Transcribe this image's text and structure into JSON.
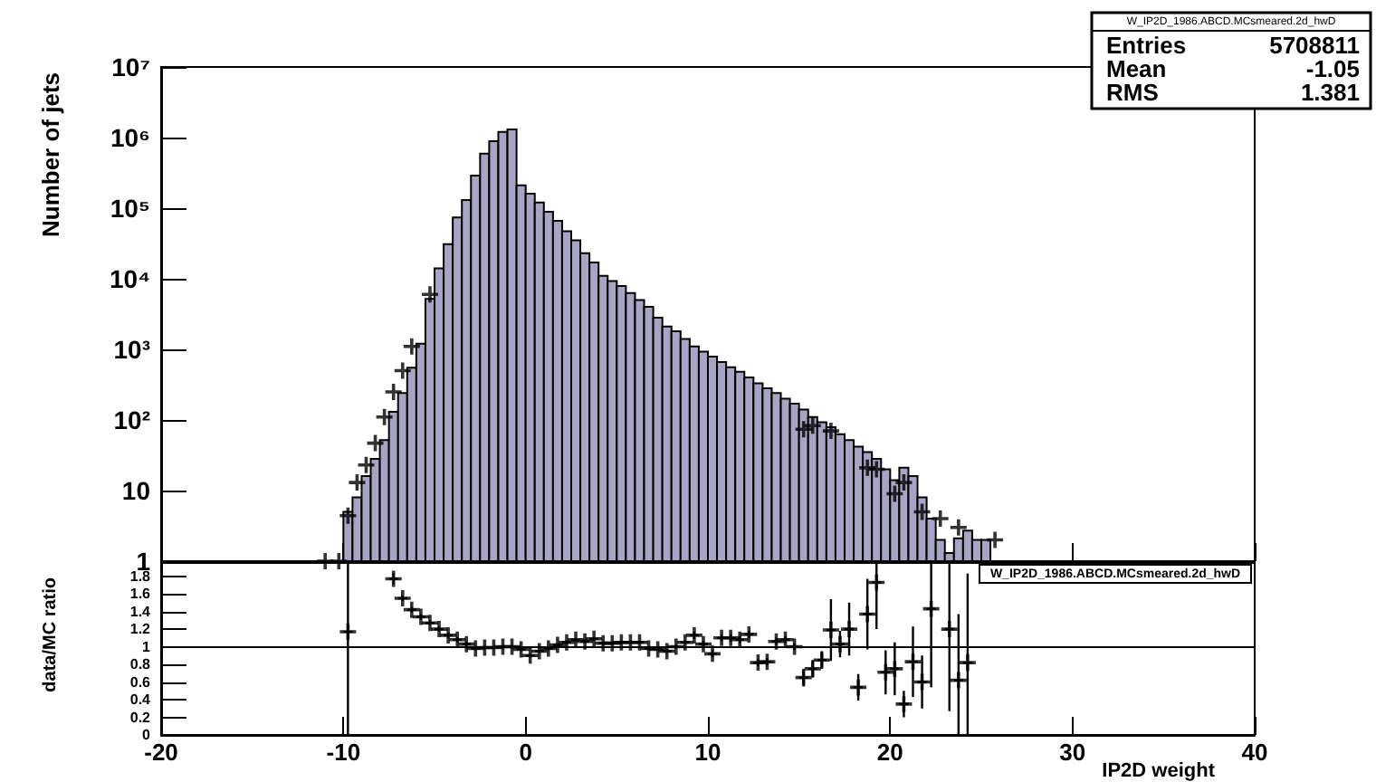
{
  "chart_data": [
    {
      "type": "histogram",
      "title": "W_IP2D_1986.ABCD.MCsmeared.2d_hwD",
      "ylabel": "Number of jets",
      "log": "y",
      "xlim": [
        -20,
        40
      ],
      "ylim": [
        1,
        10000000
      ],
      "yticks": [
        1,
        10,
        {
          "value": 100,
          "label": "10²"
        },
        {
          "value": 1000,
          "label": "10³"
        },
        {
          "value": 10000,
          "label": "10⁴"
        },
        {
          "value": 100000,
          "label": "10⁵"
        },
        {
          "value": 1000000,
          "label": "10⁶"
        },
        {
          "value": 10000000,
          "label": "10⁷"
        }
      ],
      "tick_labels": "y",
      "marker": "cross",
      "annotations": [
        "Entries 5708811",
        "Mean -1.05",
        "RMS 1.381"
      ],
      "series": [
        {
          "type": "histogram",
          "color": "#a8a5c4",
          "bins": [
            -10,
            -9.5,
            -9,
            -8.5,
            -8,
            -7.5,
            -7,
            -6.5,
            -6,
            -5.5,
            -5,
            -4.5,
            -4,
            -3.5,
            -3,
            -2.5,
            -2,
            -1.5,
            -1,
            -0.5,
            0,
            0.5,
            1,
            1.5,
            2,
            2.5,
            3,
            3.5,
            4,
            4.5,
            5,
            5.5,
            6,
            6.5,
            7,
            7.5,
            8,
            8.5,
            9,
            9.5,
            10,
            10.5,
            11,
            11.5,
            12,
            12.5,
            13,
            13.5,
            14,
            14.5,
            15,
            15.5,
            16,
            16.5,
            17,
            17.5,
            18,
            18.5,
            19,
            19.5,
            20,
            20.5,
            21,
            21.5,
            22,
            22.5,
            23,
            23.5,
            24,
            24.5,
            25,
            25.5
          ],
          "values": [
            5,
            8,
            16,
            28,
            52,
            130,
            240,
            550,
            1200,
            5200,
            14000,
            31000,
            74000,
            130000,
            290000,
            590000,
            890000,
            1200000,
            1300000,
            210000,
            160000,
            120000,
            89000,
            66000,
            47000,
            35000,
            23000,
            17000,
            11000,
            9300,
            7900,
            6300,
            5000,
            4000,
            2800,
            2100,
            1800,
            1400,
            1100,
            930,
            790,
            660,
            560,
            480,
            400,
            330,
            280,
            240,
            200,
            170,
            140,
            110,
            93,
            79,
            63,
            52,
            42,
            35,
            28,
            20,
            14,
            21,
            16,
            8,
            4,
            2,
            1.3,
            2.1,
            2.7,
            2,
            2
          ]
        },
        {
          "type": "scatter",
          "color": "#000000",
          "x": [
            -11,
            -10.25,
            -9.75,
            -9.25,
            -8.75,
            -8.25,
            -7.75,
            -7.25,
            -6.75,
            -6.25,
            -5.25,
            15.25,
            15.75,
            16.75,
            18.75,
            19.25,
            20.25,
            20.75,
            21.75,
            22.75,
            23.75,
            25.75
          ],
          "values": [
            1,
            1,
            4.4,
            13,
            23,
            47,
            110,
            250,
            500,
            1100,
            6000,
            74,
            83,
            70,
            21,
            20,
            9,
            13,
            5,
            4,
            3,
            2
          ]
        }
      ]
    },
    {
      "type": "scatter",
      "title": "W_IP2D_1986.ABCD.MCsmeared.2d_hwD",
      "xlabel": "IP2D weight",
      "ylabel": "data/MC ratio",
      "color": "#000000",
      "xlim": [
        -20,
        40
      ],
      "xticks": [
        -20,
        -10,
        0,
        10,
        20,
        30,
        40
      ],
      "ylim": [
        0,
        1.95
      ],
      "marker": "cross",
      "yticks": [
        0,
        0.2,
        0.4,
        0.6,
        0.8,
        1,
        1.2,
        1.4,
        1.6,
        1.8
      ],
      "ref_lines": [
        {
          "axis": "y",
          "value": 1,
          "color": "#000000"
        }
      ],
      "x": [
        -9.75,
        -7.25,
        -6.75,
        -6.25,
        -5.75,
        -5.25,
        -4.75,
        -4.25,
        -3.75,
        -3.25,
        -2.75,
        -2.25,
        -1.75,
        -1.25,
        -0.75,
        -0.25,
        0.25,
        0.75,
        1.25,
        1.75,
        2.25,
        2.75,
        3.25,
        3.75,
        4.25,
        4.75,
        5.25,
        5.75,
        6.25,
        6.75,
        7.25,
        7.75,
        8.25,
        8.75,
        9.25,
        9.75,
        10.25,
        10.75,
        11.25,
        11.75,
        12.25,
        12.75,
        13.25,
        13.75,
        14.25,
        14.75,
        15.25,
        15.75,
        16.25,
        16.75,
        17.25,
        17.75,
        18.25,
        18.75,
        19.25,
        19.75,
        20.25,
        20.75,
        21.25,
        21.75,
        22.25,
        23.25,
        23.75,
        24.25
      ],
      "values": [
        1.17,
        1.77,
        1.55,
        1.42,
        1.34,
        1.27,
        1.2,
        1.13,
        1.08,
        1.03,
        0.98,
        0.99,
        0.99,
        1.0,
        1.0,
        0.97,
        0.9,
        0.95,
        0.98,
        1.02,
        1.05,
        1.08,
        1.06,
        1.09,
        1.04,
        1.04,
        1.05,
        1.05,
        1.05,
        0.98,
        0.97,
        0.95,
        1.0,
        1.05,
        1.13,
        1.03,
        0.92,
        1.1,
        1.1,
        1.08,
        1.14,
        0.82,
        0.83,
        1.06,
        1.08,
        1.0,
        0.65,
        0.75,
        0.85,
        1.19,
        1.03,
        1.2,
        0.54,
        1.37,
        1.73,
        0.71,
        0.75,
        0.35,
        0.83,
        0.6,
        1.43,
        1.2,
        0.62,
        0.82
      ],
      "errors": [
        [
          0,
          1.95
        ],
        0.06,
        0.03,
        0.03,
        0.03,
        0.03,
        0.03,
        0.03,
        0.03,
        0.03,
        0.02,
        0.02,
        0.02,
        0.02,
        0.02,
        0.02,
        0.02,
        0.02,
        0.02,
        0.02,
        0.02,
        0.02,
        0.02,
        0.02,
        0.02,
        0.02,
        0.02,
        0.02,
        0.02,
        0.02,
        0.02,
        0.02,
        0.02,
        0.02,
        0.04,
        0.04,
        0.04,
        0.04,
        0.04,
        0.04,
        0.04,
        0.04,
        0.04,
        0.04,
        0.04,
        0.04,
        0.1,
        0.1,
        0.1,
        0.35,
        0.15,
        0.3,
        0.15,
        0.4,
        [
          1.2,
          1.95
        ],
        0.25,
        0.3,
        0.15,
        0.4,
        0.3,
        [
          0.54,
          1.95
        ],
        [
          0.27,
          1.95
        ],
        [
          0,
          1.37
        ],
        [
          0,
          1.83
        ]
      ],
      "xerrors": [
        0.25,
        0.25,
        0.25,
        0.25,
        0.25,
        0.25,
        0.25,
        0.25,
        0.25,
        0.25,
        0.25,
        0.25,
        0.25,
        0.25,
        0.25,
        0.25,
        0.25,
        0.25,
        0.25,
        0.25,
        0.25,
        0.25,
        0.25,
        0.25,
        0.25,
        0.25,
        0.25,
        0.25,
        0.25,
        0.25,
        0.25,
        0.25,
        0.25,
        0.25,
        0.25,
        0.25,
        0.25,
        0.25,
        0.25,
        0.25,
        0.25,
        0.25,
        0.25,
        0.25,
        0.25,
        0.25,
        0.25,
        0.25,
        0.25,
        0.25,
        0.25,
        0.25,
        0.25,
        0.25,
        0.25,
        0.25,
        0.25,
        0.25,
        0.25,
        0.25,
        0.25,
        0.25,
        0.25,
        0.25
      ]
    }
  ]
}
